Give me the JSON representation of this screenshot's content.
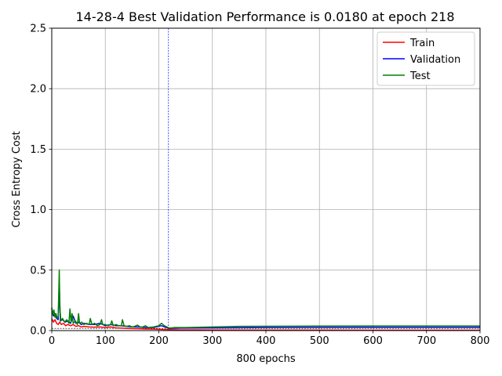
{
  "chart_data": {
    "type": "line",
    "title": "14-28-4 Best Validation Performance is 0.0180 at epoch 218",
    "xlabel": "800 epochs",
    "ylabel": "Cross Entropy Cost",
    "xlim": [
      0,
      800
    ],
    "ylim": [
      0,
      2.5
    ],
    "xticks": [
      0,
      100,
      200,
      300,
      400,
      500,
      600,
      700,
      800
    ],
    "yticks": [
      0,
      0.5,
      1.0,
      1.5,
      2.0,
      2.5
    ],
    "xtick_labels": [
      "0",
      "100",
      "200",
      "300",
      "400",
      "500",
      "600",
      "700",
      "800"
    ],
    "ytick_labels": [
      "0.0",
      "0.5",
      "1.0",
      "1.5",
      "2.0",
      "2.5"
    ],
    "grid": true,
    "legend_position": "top-right",
    "best_epoch": 218,
    "best_value": 0.018,
    "series": [
      {
        "name": "Train",
        "color": "#ff0000",
        "x": [
          0,
          3,
          6,
          9,
          12,
          15,
          18,
          22,
          26,
          30,
          35,
          40,
          45,
          50,
          55,
          60,
          70,
          80,
          90,
          100,
          110,
          120,
          130,
          140,
          150,
          160,
          175,
          190,
          205,
          218,
          240,
          300,
          400,
          500,
          600,
          700,
          800
        ],
        "y": [
          0.1,
          0.07,
          0.09,
          0.06,
          0.05,
          0.07,
          0.05,
          0.06,
          0.04,
          0.05,
          0.04,
          0.05,
          0.035,
          0.04,
          0.03,
          0.035,
          0.03,
          0.028,
          0.03,
          0.025,
          0.03,
          0.022,
          0.02,
          0.018,
          0.016,
          0.015,
          0.013,
          0.012,
          0.01,
          0.008,
          0.006,
          0.005,
          0.004,
          0.004,
          0.003,
          0.003,
          0.003
        ]
      },
      {
        "name": "Validation",
        "color": "#0000ff",
        "x": [
          0,
          3,
          6,
          9,
          12,
          14,
          16,
          20,
          25,
          30,
          35,
          40,
          45,
          50,
          55,
          60,
          70,
          80,
          90,
          100,
          110,
          120,
          130,
          140,
          150,
          160,
          175,
          190,
          205,
          218,
          240,
          300,
          400,
          500,
          600,
          700,
          800
        ],
        "y": [
          0.18,
          0.12,
          0.14,
          0.1,
          0.09,
          0.4,
          0.08,
          0.09,
          0.07,
          0.08,
          0.06,
          0.12,
          0.06,
          0.07,
          0.05,
          0.06,
          0.05,
          0.05,
          0.06,
          0.04,
          0.05,
          0.04,
          0.04,
          0.035,
          0.03,
          0.03,
          0.025,
          0.025,
          0.04,
          0.018,
          0.02,
          0.022,
          0.025,
          0.026,
          0.027,
          0.027,
          0.027
        ]
      },
      {
        "name": "Test",
        "color": "#008000",
        "x": [
          0,
          2,
          4,
          6,
          8,
          10,
          12,
          13,
          14,
          15,
          17,
          20,
          24,
          28,
          32,
          34,
          36,
          38,
          40,
          44,
          48,
          50,
          52,
          56,
          60,
          65,
          70,
          72,
          75,
          80,
          85,
          90,
          93,
          95,
          100,
          105,
          110,
          112,
          115,
          120,
          125,
          130,
          132,
          135,
          140,
          145,
          150,
          155,
          160,
          165,
          170,
          175,
          180,
          190,
          200,
          205,
          210,
          215,
          220,
          230,
          250,
          300,
          350,
          400,
          500,
          600,
          700,
          800
        ],
        "y": [
          0.19,
          0.13,
          0.17,
          0.11,
          0.14,
          0.1,
          0.12,
          0.3,
          0.5,
          0.2,
          0.08,
          0.1,
          0.07,
          0.09,
          0.06,
          0.18,
          0.07,
          0.14,
          0.06,
          0.08,
          0.05,
          0.14,
          0.06,
          0.07,
          0.05,
          0.06,
          0.05,
          0.1,
          0.05,
          0.06,
          0.04,
          0.05,
          0.09,
          0.05,
          0.05,
          0.04,
          0.05,
          0.08,
          0.04,
          0.05,
          0.04,
          0.04,
          0.09,
          0.04,
          0.035,
          0.04,
          0.03,
          0.035,
          0.045,
          0.03,
          0.03,
          0.04,
          0.025,
          0.03,
          0.04,
          0.06,
          0.04,
          0.03,
          0.02,
          0.025,
          0.025,
          0.03,
          0.035,
          0.036,
          0.037,
          0.038,
          0.038,
          0.038
        ]
      }
    ]
  }
}
